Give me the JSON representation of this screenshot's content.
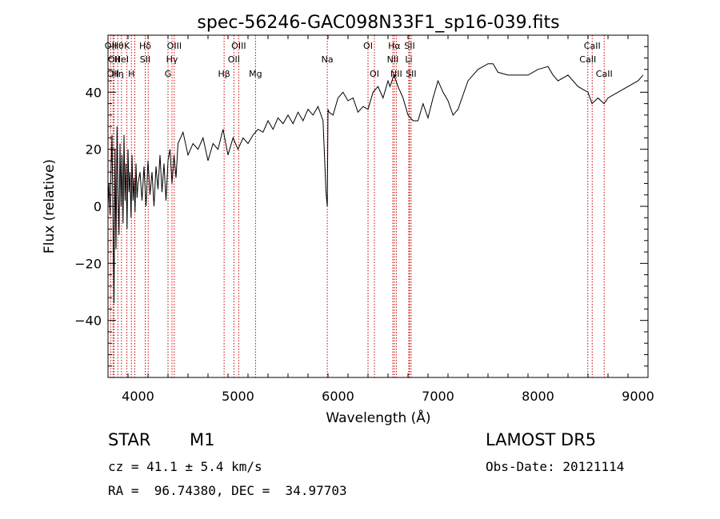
{
  "chart_data": {
    "type": "line",
    "title": "spec-56246-GAC098N33F1_sp16-039.fits",
    "xlabel": "Wavelength (Å)",
    "ylabel": "Flux (relative)",
    "xlim": [
      3700,
      9100
    ],
    "ylim": [
      -60,
      60
    ],
    "x_ticks": [
      4000,
      5000,
      6000,
      7000,
      8000,
      9000
    ],
    "y_ticks": [
      -40,
      -20,
      0,
      20,
      40
    ],
    "line_color": "#000000",
    "marker_color": "#cc0000",
    "series": [
      {
        "x": [
          3700,
          3710,
          3720,
          3730,
          3740,
          3750,
          3760,
          3770,
          3780,
          3790,
          3800,
          3810,
          3820,
          3830,
          3840,
          3850,
          3860,
          3870,
          3880,
          3890,
          3900,
          3910,
          3920,
          3930,
          3940,
          3950,
          3960,
          3970,
          3980,
          3990,
          4000,
          4020,
          4040,
          4060,
          4080,
          4100,
          4120,
          4140,
          4160,
          4180,
          4200,
          4220,
          4240,
          4260,
          4280,
          4300,
          4320,
          4340,
          4360,
          4380,
          4400,
          4450,
          4500,
          4550,
          4600,
          4650,
          4700,
          4750,
          4800,
          4850,
          4900,
          4950,
          5000,
          5050,
          5100,
          5150,
          5200,
          5250,
          5300,
          5350,
          5400,
          5450,
          5500,
          5550,
          5600,
          5650,
          5700,
          5750,
          5800,
          5850,
          5880,
          5893,
          5900,
          5910,
          5950,
          6000,
          6050,
          6100,
          6150,
          6200,
          6250,
          6300,
          6350,
          6400,
          6450,
          6500,
          6520,
          6560,
          6600,
          6650,
          6700,
          6750,
          6800,
          6850,
          6900,
          6950,
          7000,
          7050,
          7100,
          7150,
          7200,
          7300,
          7400,
          7500,
          7550,
          7600,
          7700,
          7800,
          7900,
          8000,
          8100,
          8150,
          8200,
          8300,
          8400,
          8500,
          8540,
          8600,
          8660,
          8700,
          8800,
          8900,
          9000,
          9050
        ],
        "y": [
          0,
          8,
          -3,
          12,
          25,
          -5,
          -34,
          20,
          -15,
          28,
          5,
          -10,
          22,
          0,
          18,
          -6,
          25,
          2,
          15,
          -8,
          20,
          5,
          12,
          -4,
          18,
          2,
          10,
          -2,
          15,
          3,
          8,
          12,
          2,
          14,
          0,
          16,
          4,
          12,
          0,
          14,
          6,
          18,
          5,
          15,
          2,
          16,
          20,
          8,
          18,
          10,
          22,
          26,
          18,
          22,
          20,
          24,
          16,
          22,
          20,
          27,
          18,
          24,
          20,
          24,
          22,
          25,
          27,
          26,
          30,
          27,
          31,
          29,
          32,
          29,
          33,
          30,
          34,
          32,
          35,
          30,
          5,
          0,
          34,
          33,
          32,
          38,
          40,
          37,
          38,
          33,
          35,
          34,
          40,
          42,
          38,
          44,
          42,
          46,
          42,
          38,
          32,
          30,
          30,
          36,
          31,
          38,
          44,
          40,
          37,
          32,
          34,
          44,
          48,
          50,
          50,
          47,
          46,
          46,
          46,
          48,
          49,
          46,
          44,
          46,
          42,
          40,
          36,
          38,
          36,
          38,
          40,
          42,
          44,
          46
        ]
      }
    ],
    "lines": [
      {
        "x": 3727,
        "top": "OII",
        "mid": "",
        "bot": ""
      },
      {
        "x": 3750,
        "top": "",
        "mid": "",
        "bot": "OII"
      },
      {
        "x": 3760,
        "top": "",
        "mid": "OII",
        "bot": ""
      },
      {
        "x": 3798,
        "top": "Hθ",
        "mid": "",
        "bot": "Hη"
      },
      {
        "x": 3835,
        "top": "",
        "mid": "HeI",
        "bot": ""
      },
      {
        "x": 3889,
        "top": "K",
        "mid": "",
        "bot": ""
      },
      {
        "x": 3934,
        "top": "",
        "mid": "",
        "bot": "H"
      },
      {
        "x": 3968,
        "top": "",
        "mid": "",
        "bot": ""
      },
      {
        "x": 4072,
        "top": "Hδ",
        "mid": "SII",
        "bot": ""
      },
      {
        "x": 4102,
        "top": "",
        "mid": "",
        "bot": ""
      },
      {
        "x": 4300,
        "top": "",
        "mid": "",
        "bot": "G"
      },
      {
        "x": 4340,
        "top": "",
        "mid": "Hγ",
        "bot": ""
      },
      {
        "x": 4363,
        "top": "OIII",
        "mid": "",
        "bot": ""
      },
      {
        "x": 4861,
        "top": "",
        "mid": "",
        "bot": "Hβ"
      },
      {
        "x": 4959,
        "top": "",
        "mid": "OII",
        "bot": ""
      },
      {
        "x": 5007,
        "top": "OIII",
        "mid": "",
        "bot": ""
      },
      {
        "x": 5175,
        "top": "",
        "mid": "",
        "bot": "Mg"
      },
      {
        "x": 5893,
        "top": "",
        "mid": "Na",
        "bot": ""
      },
      {
        "x": 6300,
        "top": "OI",
        "mid": "",
        "bot": ""
      },
      {
        "x": 6364,
        "top": "",
        "mid": "",
        "bot": "OI"
      },
      {
        "x": 6548,
        "top": "",
        "mid": "NII",
        "bot": ""
      },
      {
        "x": 6563,
        "top": "Hα",
        "mid": "",
        "bot": ""
      },
      {
        "x": 6583,
        "top": "",
        "mid": "",
        "bot": "NII"
      },
      {
        "x": 6708,
        "top": "",
        "mid": "Li",
        "bot": ""
      },
      {
        "x": 6716,
        "top": "SII",
        "mid": "",
        "bot": ""
      },
      {
        "x": 6731,
        "top": "",
        "mid": "",
        "bot": "SII"
      },
      {
        "x": 8498,
        "top": "",
        "mid": "CaII",
        "bot": ""
      },
      {
        "x": 8542,
        "top": "CaII",
        "mid": "",
        "bot": ""
      },
      {
        "x": 8662,
        "top": "",
        "mid": "",
        "bot": "CaII"
      }
    ]
  },
  "info": {
    "object_class": "STAR",
    "subclass": "M1",
    "survey": "LAMOST DR5",
    "cz": "cz = 41.1 ± 5.4 km/s",
    "obs_date": "Obs-Date: 20121114",
    "radec": "RA =  96.74380, DEC =  34.97703"
  }
}
